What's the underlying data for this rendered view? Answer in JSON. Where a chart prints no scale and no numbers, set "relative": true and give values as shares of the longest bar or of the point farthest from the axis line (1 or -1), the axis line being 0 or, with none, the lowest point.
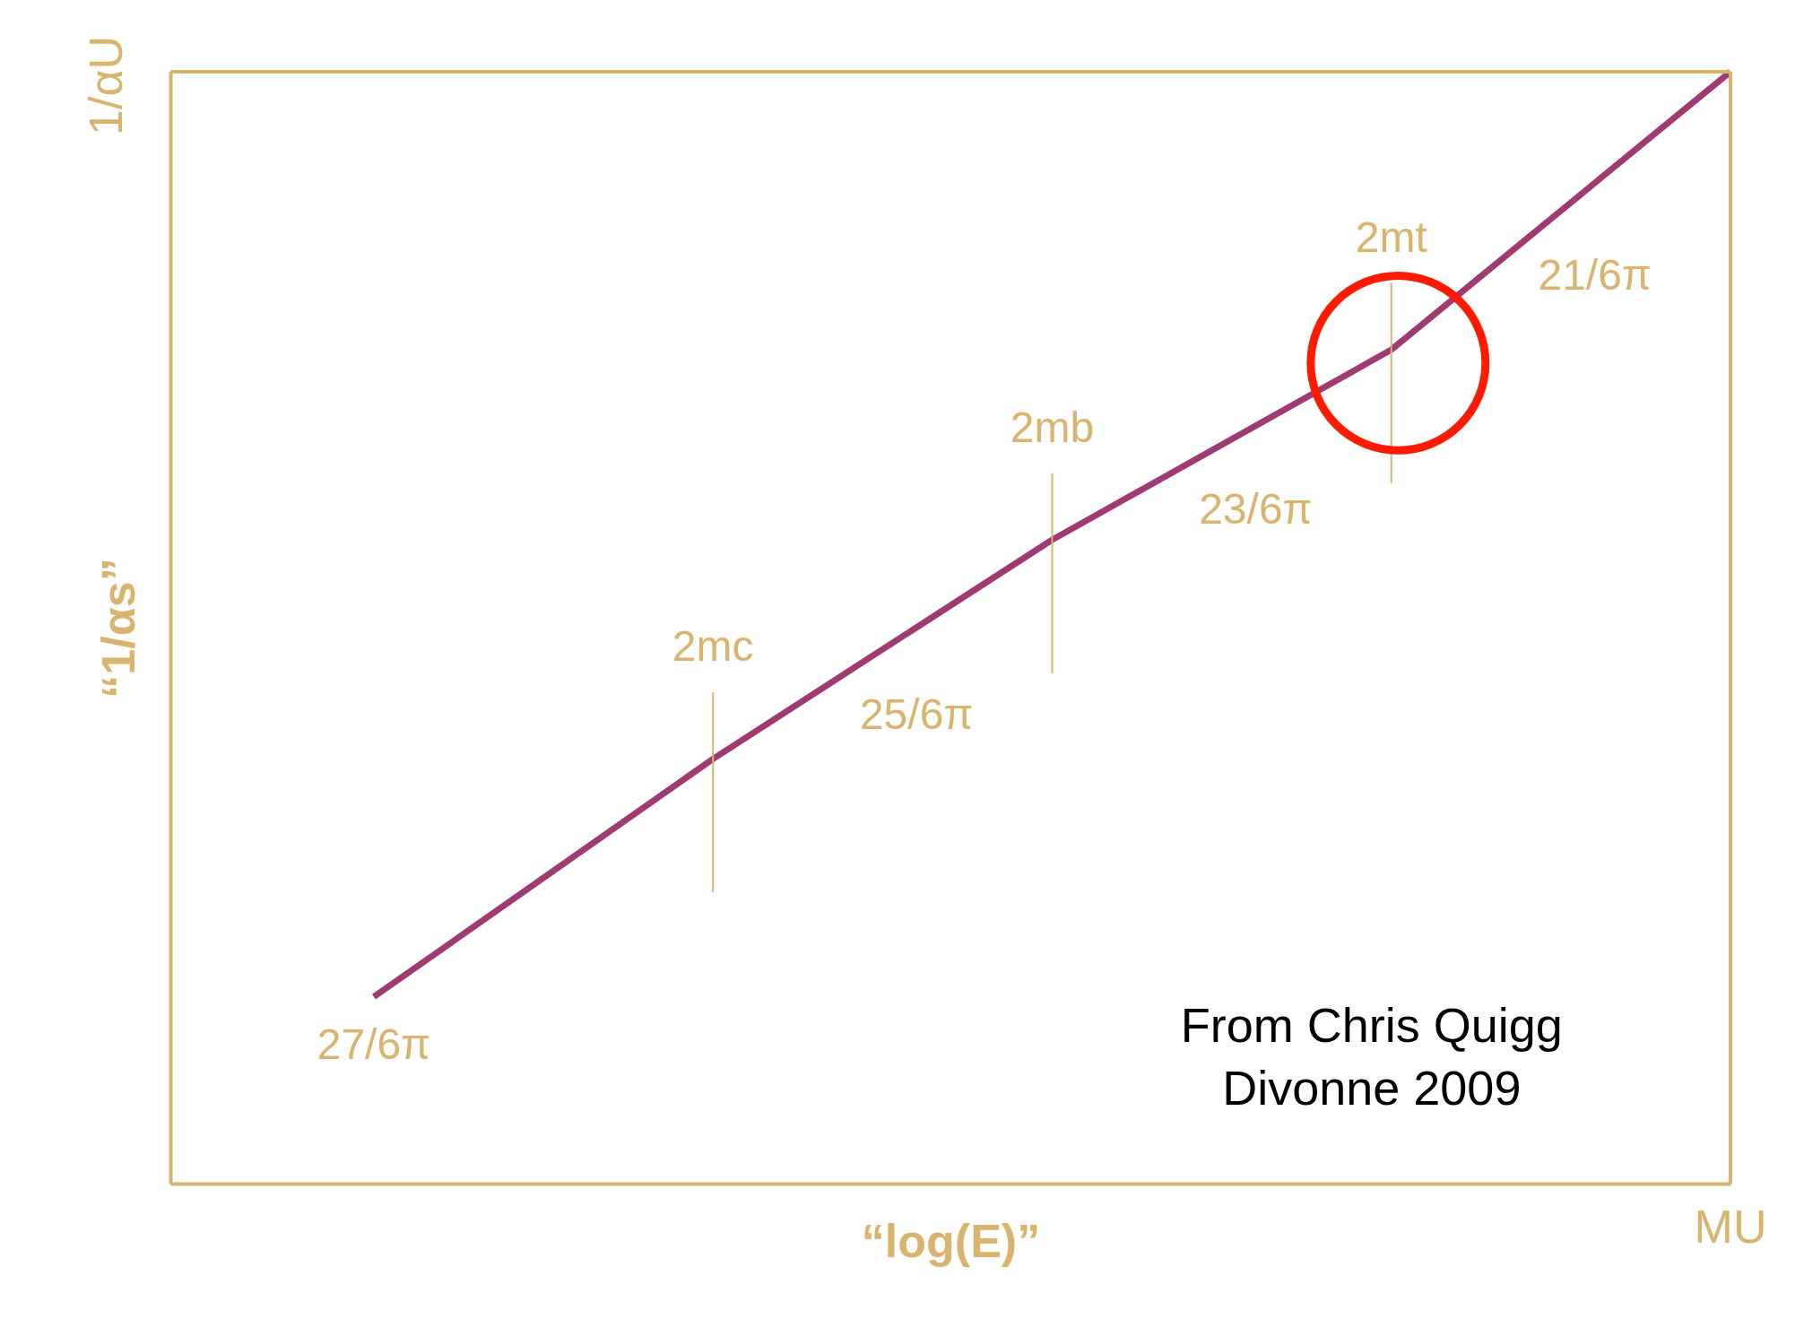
{
  "chart_data": {
    "type": "line",
    "relative": true,
    "xlabel": "“log(E)”",
    "ylabel": "“1/αs”",
    "categories": [
      null,
      "2mc",
      "2mb",
      "2mt",
      "MU"
    ],
    "series": [
      {
        "color": "#a03a72",
        "values": [
          0.168,
          0.382,
          0.579,
          0.75,
          1.0
        ]
      }
    ],
    "ref_lines": [
      {
        "axis": "x",
        "value": "2mc",
        "color": "#d8b46e"
      },
      {
        "axis": "x",
        "value": "2mb",
        "color": "#d8b46e"
      },
      {
        "axis": "x",
        "value": "2mt",
        "color": "#d8b46e"
      }
    ],
    "annotations": [
      "27/6π",
      "25/6π",
      "23/6π",
      "21/6π",
      "1/αU",
      "From Chris Quigg\nDivonne 2009"
    ],
    "marker": "none",
    "line_style": "solid"
  }
}
